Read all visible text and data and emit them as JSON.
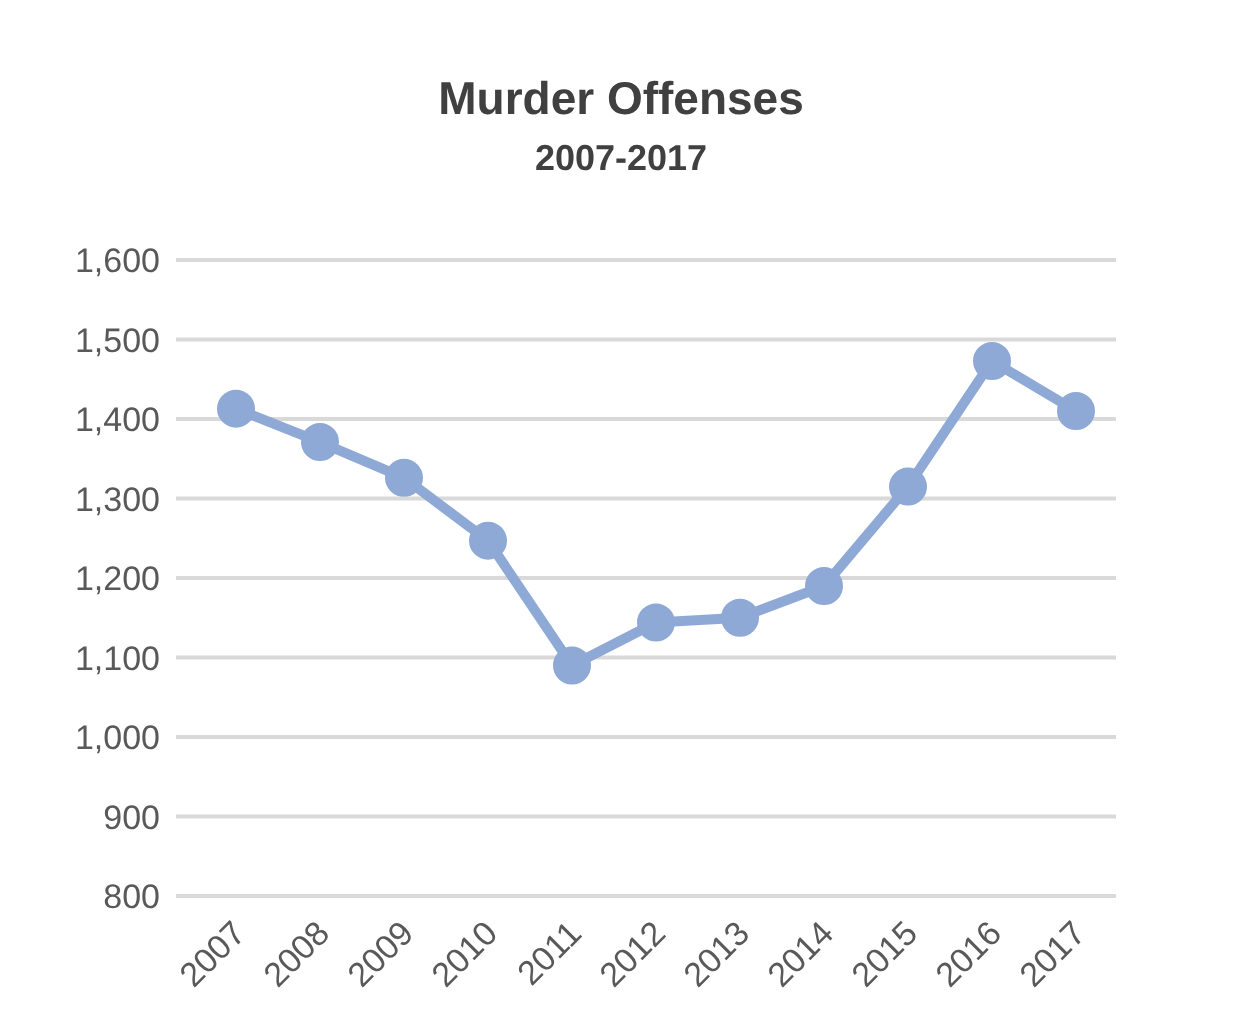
{
  "chart_data": {
    "type": "line",
    "title": "Murder Offenses",
    "subtitle": "2007-2017",
    "categories": [
      "2007",
      "2008",
      "2009",
      "2010",
      "2011",
      "2012",
      "2013",
      "2014",
      "2015",
      "2016",
      "2017"
    ],
    "series": [
      {
        "color": "#8fa9d6",
        "values": [
          1413,
          1371,
          1326,
          1247,
          1090,
          1144,
          1150,
          1190,
          1315,
          1473,
          1410
        ]
      }
    ],
    "ylim": [
      800,
      1600
    ],
    "yticks": [
      800,
      900,
      {
        "value": 1000,
        "label": "1,000"
      },
      {
        "value": 1100,
        "label": "1,100"
      },
      {
        "value": 1200,
        "label": "1,200"
      },
      {
        "value": 1300,
        "label": "1,300"
      },
      {
        "value": 1400,
        "label": "1,400"
      },
      {
        "value": 1500,
        "label": "1,500"
      },
      {
        "value": 1600,
        "label": "1,600"
      }
    ],
    "grid": "y",
    "marker": "circle",
    "line_style": "solid",
    "legend": false
  }
}
